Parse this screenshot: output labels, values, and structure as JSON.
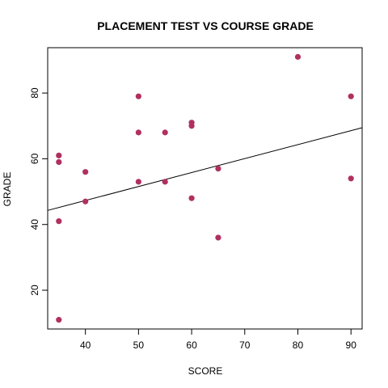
{
  "chart_data": {
    "type": "scatter",
    "title": "PLACEMENT TEST VS COURSE GRADE",
    "xlabel": "SCORE",
    "ylabel": "GRADE",
    "xlim": [
      32.9,
      92.1
    ],
    "ylim": [
      8.2,
      93.8
    ],
    "xticks": [
      40,
      50,
      60,
      70,
      80,
      90
    ],
    "yticks": [
      20,
      40,
      60,
      80
    ],
    "grid": false,
    "point_color": "#b03060",
    "points": [
      {
        "x": 35,
        "y": 11
      },
      {
        "x": 35,
        "y": 41
      },
      {
        "x": 35,
        "y": 59
      },
      {
        "x": 35,
        "y": 61
      },
      {
        "x": 40,
        "y": 47
      },
      {
        "x": 40,
        "y": 56
      },
      {
        "x": 50,
        "y": 53
      },
      {
        "x": 50,
        "y": 68
      },
      {
        "x": 50,
        "y": 79
      },
      {
        "x": 55,
        "y": 53
      },
      {
        "x": 55,
        "y": 68
      },
      {
        "x": 60,
        "y": 48
      },
      {
        "x": 60,
        "y": 70
      },
      {
        "x": 60,
        "y": 71
      },
      {
        "x": 65,
        "y": 36
      },
      {
        "x": 65,
        "y": 57
      },
      {
        "x": 80,
        "y": 91
      },
      {
        "x": 90,
        "y": 54
      },
      {
        "x": 90,
        "y": 79
      }
    ],
    "trendline": {
      "intercept": 30.3,
      "slope": 0.425
    }
  }
}
